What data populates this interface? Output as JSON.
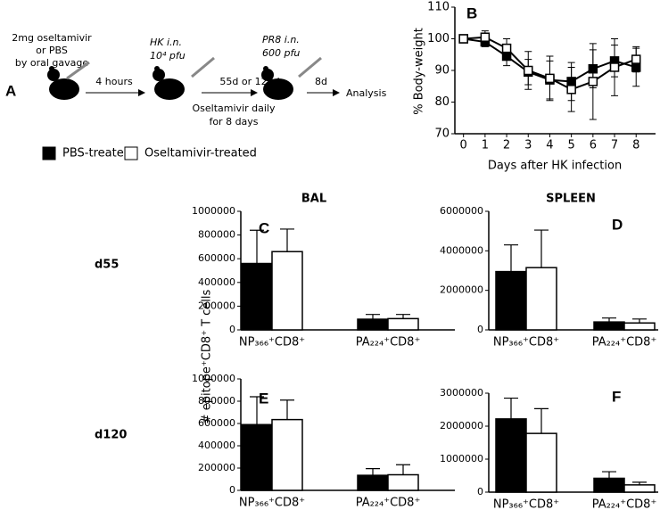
{
  "panel_a": {
    "label": "A",
    "dose_lines": [
      "2mg oseltamivir",
      "or PBS",
      "by oral gavage"
    ],
    "step1": "4 hours",
    "hk_route": "HK i.n.",
    "hk_dose": "10⁴ pfu",
    "interval": "55d or 120d",
    "treatment_lines": [
      "Oseltamivir daily",
      "for 8 days"
    ],
    "pr8_route": "PR8 i.n.",
    "pr8_dose": "600 pfu",
    "step3": "8d",
    "end": "Analysis"
  },
  "row_labels": [
    "d55",
    "d120"
  ],
  "shared_ylabel": "# epitope⁺CD8⁺ T cells",
  "chart_data": [
    {
      "type": "line",
      "label": "B",
      "xlabel": "Days after HK infection",
      "ylabel": "% Body-weight",
      "x": [
        0,
        1,
        2,
        3,
        4,
        5,
        6,
        7,
        8
      ],
      "xlim": [
        -0.4,
        8.9
      ],
      "xticks": [
        0,
        1,
        2,
        3,
        4,
        5,
        6,
        7,
        8
      ],
      "ylim": [
        70,
        110
      ],
      "yticks": [
        70,
        80,
        90,
        100,
        110
      ],
      "series": [
        {
          "color": "#000000",
          "marker_fill": "#000000",
          "values": [
            100,
            99,
            94.5,
            89.5,
            87,
            86.5,
            90.5,
            93,
            91
          ],
          "errors": [
            0,
            1.5,
            3,
            4,
            6,
            6,
            6,
            5,
            6
          ]
        },
        {
          "color": "#000000",
          "marker_fill": "#ffffff",
          "values": [
            100,
            100.5,
            97,
            90,
            87.5,
            84,
            86.5,
            91,
            93.5
          ],
          "errors": [
            0,
            2,
            3,
            6,
            7,
            7,
            12,
            9,
            4
          ]
        }
      ]
    },
    {
      "type": "bar",
      "label": "C",
      "title": "BAL",
      "categories": [
        "NP₃₆₆⁺CD8⁺",
        "PA₂₂₄⁺CD8⁺"
      ],
      "ylim": [
        0,
        1000000
      ],
      "yticks": [
        0,
        200000,
        400000,
        600000,
        800000,
        1000000
      ],
      "series": [
        {
          "name": "PBS-treated",
          "color": "#000000",
          "values": [
            560000,
            90000
          ],
          "errors": [
            280000,
            40000
          ]
        },
        {
          "name": "Oseltamivir-treated",
          "color": "#ffffff",
          "values": [
            660000,
            95000
          ],
          "errors": [
            190000,
            35000
          ]
        }
      ]
    },
    {
      "type": "bar",
      "label": "D",
      "title": "SPLEEN",
      "categories": [
        "NP₃₆₆⁺CD8⁺",
        "PA₂₂₄⁺CD8⁺"
      ],
      "ylim": [
        0,
        6000000
      ],
      "yticks": [
        0,
        2000000,
        4000000,
        6000000
      ],
      "series": [
        {
          "color": "#000000",
          "values": [
            2950000,
            400000
          ],
          "errors": [
            1350000,
            200000
          ]
        },
        {
          "color": "#ffffff",
          "values": [
            3150000,
            350000
          ],
          "errors": [
            1900000,
            200000
          ]
        }
      ]
    },
    {
      "type": "bar",
      "label": "E",
      "categories": [
        "NP₃₆₆⁺CD8⁺",
        "PA₂₂₄⁺CD8⁺"
      ],
      "ylim": [
        0,
        1000000
      ],
      "yticks": [
        0,
        200000,
        400000,
        600000,
        800000,
        1000000
      ],
      "series": [
        {
          "color": "#000000",
          "values": [
            590000,
            135000
          ],
          "errors": [
            250000,
            60000
          ]
        },
        {
          "color": "#ffffff",
          "values": [
            635000,
            140000
          ],
          "errors": [
            175000,
            90000
          ]
        }
      ]
    },
    {
      "type": "bar",
      "label": "F",
      "categories": [
        "NP₃₆₆⁺CD8⁺",
        "PA₂₂₄⁺CD8⁺"
      ],
      "ylim": [
        0,
        3000000
      ],
      "yticks": [
        0,
        1000000,
        2000000,
        3000000
      ],
      "series": [
        {
          "color": "#000000",
          "values": [
            2220000,
            420000
          ],
          "errors": [
            630000,
            200000
          ]
        },
        {
          "color": "#ffffff",
          "values": [
            1780000,
            220000
          ],
          "errors": [
            750000,
            80000
          ]
        }
      ]
    }
  ]
}
